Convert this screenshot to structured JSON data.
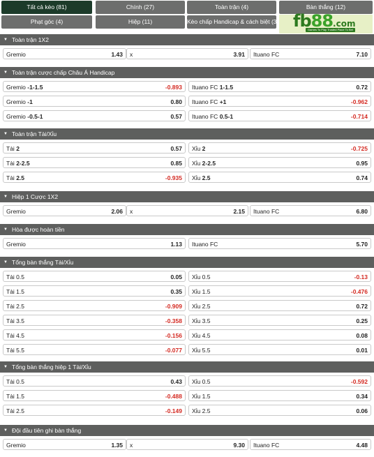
{
  "tabs": [
    {
      "label": "Tất cả kèo (81)",
      "active": true
    },
    {
      "label": "Chính (27)",
      "active": false
    },
    {
      "label": "Toàn trận (4)",
      "active": false
    },
    {
      "label": "Bàn thắng (12)",
      "active": false
    },
    {
      "label": "Phạt góc (4)",
      "active": false
    },
    {
      "label": "Hiệp (11)",
      "active": false
    },
    {
      "label": "Kèo chấp Handicap & cách biệt (3)",
      "active": false
    }
  ],
  "logo": {
    "text_a": "fb",
    "text_b": "88",
    ".com": ".com",
    "domain": ".com",
    "tagline": "Games To Play   Trusted Place To Bet"
  },
  "sections": [
    {
      "title": "Toàn trận 1X2",
      "type": "three",
      "rows": [
        [
          {
            "label": "Gremio",
            "odd": "1.43"
          },
          {
            "label": "x",
            "odd": "3.91"
          },
          {
            "label": "Ituano FC",
            "odd": "7.10"
          }
        ]
      ]
    },
    {
      "title": "Toàn trận cược chấp Châu Á Handicap",
      "type": "two",
      "rows": [
        [
          {
            "label": "Gremio",
            "hc": "-1-1.5",
            "odd": "-0.893"
          },
          {
            "label": "Ituano FC",
            "hc": "1-1.5",
            "odd": "0.72"
          }
        ],
        [
          {
            "label": "Gremio",
            "hc": "-1",
            "odd": "0.80"
          },
          {
            "label": "Ituano FC",
            "hc": "+1",
            "odd": "-0.962"
          }
        ],
        [
          {
            "label": "Gremio",
            "hc": "-0.5-1",
            "odd": "0.57"
          },
          {
            "label": "Ituano FC",
            "hc": "0.5-1",
            "odd": "-0.714"
          }
        ]
      ]
    },
    {
      "title": "Toàn trận Tài/Xỉu",
      "type": "two",
      "rows": [
        [
          {
            "label": "Tài",
            "hc": "2",
            "odd": "0.57"
          },
          {
            "label": "Xỉu",
            "hc": "2",
            "odd": "-0.725"
          }
        ],
        [
          {
            "label": "Tài",
            "hc": "2-2.5",
            "odd": "0.85"
          },
          {
            "label": "Xỉu",
            "hc": "2-2.5",
            "odd": "0.95"
          }
        ],
        [
          {
            "label": "Tài",
            "hc": "2.5",
            "odd": "-0.935"
          },
          {
            "label": "Xỉu",
            "hc": "2.5",
            "odd": "0.74"
          }
        ]
      ]
    },
    {
      "title": "Hiệp 1 Cược 1X2",
      "type": "three",
      "rows": [
        [
          {
            "label": "Gremio",
            "odd": "2.06"
          },
          {
            "label": "x",
            "odd": "2.15"
          },
          {
            "label": "Ituano FC",
            "odd": "6.80"
          }
        ]
      ]
    },
    {
      "title": "Hòa được hoàn tiền",
      "type": "two",
      "rows": [
        [
          {
            "label": "Gremio",
            "odd": "1.13"
          },
          {
            "label": "Ituano FC",
            "odd": "5.70"
          }
        ]
      ]
    },
    {
      "title": "Tổng bàn thắng Tài/Xỉu",
      "type": "two",
      "rows": [
        [
          {
            "label": "Tài 0.5",
            "odd": "0.05"
          },
          {
            "label": "Xỉu 0.5",
            "odd": "-0.13"
          }
        ],
        [
          {
            "label": "Tài 1.5",
            "odd": "0.35"
          },
          {
            "label": "Xỉu 1.5",
            "odd": "-0.476"
          }
        ],
        [
          {
            "label": "Tài 2.5",
            "odd": "-0.909"
          },
          {
            "label": "Xỉu 2.5",
            "odd": "0.72"
          }
        ],
        [
          {
            "label": "Tài 3.5",
            "odd": "-0.358"
          },
          {
            "label": "Xỉu 3.5",
            "odd": "0.25"
          }
        ],
        [
          {
            "label": "Tài 4.5",
            "odd": "-0.156"
          },
          {
            "label": "Xỉu 4.5",
            "odd": "0.08"
          }
        ],
        [
          {
            "label": "Tài 5.5",
            "odd": "-0.077"
          },
          {
            "label": "Xỉu 5.5",
            "odd": "0.01"
          }
        ]
      ]
    },
    {
      "title": "Tổng bàn thắng hiệp 1 Tài/Xỉu",
      "type": "two",
      "rows": [
        [
          {
            "label": "Tài 0.5",
            "odd": "0.43"
          },
          {
            "label": "Xỉu 0.5",
            "odd": "-0.592"
          }
        ],
        [
          {
            "label": "Tài 1.5",
            "odd": "-0.488"
          },
          {
            "label": "Xỉu 1.5",
            "odd": "0.34"
          }
        ],
        [
          {
            "label": "Tài 2.5",
            "odd": "-0.149"
          },
          {
            "label": "Xỉu 2.5",
            "odd": "0.06"
          }
        ]
      ]
    },
    {
      "title": "Đội đầu tiên ghi bàn thắng",
      "type": "three",
      "rows": [
        [
          {
            "label": "Gremio",
            "odd": "1.35"
          },
          {
            "label": "x",
            "odd": "9.30"
          },
          {
            "label": "Ituano FC",
            "odd": "4.48"
          }
        ]
      ]
    }
  ],
  "colors": {
    "header_bg": "#5e5f5e",
    "tab_bg": "#6d6e6d",
    "tab_active_bg": "#1c3b2a",
    "negative": "#d42a22"
  },
  "icons": {
    "section_toggle": "chevron-down-icon"
  }
}
